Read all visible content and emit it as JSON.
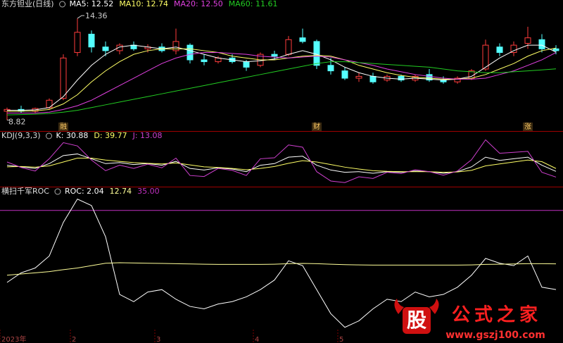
{
  "chart_data": [
    {
      "type": "candlestick",
      "title": "东方钽业(日线)",
      "open": [
        9.3,
        9.4,
        9.3,
        9.5,
        10.0,
        12.5,
        13.5,
        12.8,
        12.6,
        12.9,
        12.7,
        12.8,
        12.6,
        12.9,
        12.1,
        12.0,
        12.2,
        12.0,
        11.8,
        12.4,
        12.4,
        13.3,
        13.1,
        11.8,
        11.5,
        11.1,
        11.2,
        11.0,
        11.2,
        11.0,
        11.3,
        11.0,
        10.9,
        11.1,
        11.6,
        12.8,
        12.5,
        13.0,
        13.2,
        12.7
      ],
      "high": [
        9.5,
        9.6,
        9.5,
        10.0,
        12.4,
        14.36,
        13.7,
        13.1,
        13.0,
        13.1,
        12.95,
        13.0,
        13.8,
        13.0,
        12.4,
        12.3,
        12.4,
        12.1,
        12.5,
        12.6,
        13.4,
        13.8,
        13.2,
        12.2,
        11.7,
        11.4,
        11.4,
        11.3,
        11.3,
        11.3,
        11.6,
        11.2,
        11.2,
        11.6,
        13.2,
        13.0,
        13.1,
        13.9,
        13.5,
        12.9
      ],
      "low": [
        8.82,
        9.2,
        9.2,
        9.4,
        9.9,
        12.3,
        12.5,
        12.3,
        12.4,
        12.6,
        12.5,
        12.5,
        12.4,
        11.9,
        11.8,
        11.9,
        11.9,
        11.5,
        11.7,
        12.1,
        12.3,
        13.0,
        11.6,
        11.3,
        11.0,
        10.9,
        10.8,
        10.9,
        10.9,
        10.9,
        10.9,
        10.8,
        10.8,
        11.0,
        11.5,
        12.3,
        12.3,
        12.7,
        12.5,
        12.4
      ],
      "close": [
        9.4,
        9.3,
        9.45,
        9.9,
        12.2,
        13.6,
        12.8,
        12.6,
        12.9,
        12.7,
        12.8,
        12.6,
        13.1,
        12.1,
        12.0,
        12.2,
        12.0,
        11.7,
        12.4,
        12.3,
        13.2,
        13.1,
        11.8,
        11.5,
        11.1,
        11.2,
        10.9,
        11.2,
        11.0,
        11.2,
        11.0,
        10.9,
        11.1,
        11.5,
        12.9,
        12.5,
        12.9,
        13.3,
        12.7,
        12.6
      ],
      "up_color": "#ff3c3c",
      "down_color": "#54ffff",
      "series": [
        {
          "name": "MA5: 12.52",
          "color": "#ffffff",
          "values": [
            9.35,
            9.35,
            9.38,
            9.5,
            10.1,
            11.0,
            11.8,
            12.4,
            12.8,
            12.9,
            12.8,
            12.7,
            12.8,
            12.6,
            12.4,
            12.2,
            12.1,
            12.0,
            12.05,
            12.15,
            12.4,
            12.6,
            12.4,
            12.1,
            11.7,
            11.4,
            11.2,
            11.1,
            11.05,
            11.1,
            11.05,
            11.0,
            11.05,
            11.2,
            11.7,
            12.2,
            12.6,
            12.9,
            12.9,
            12.52
          ]
        },
        {
          "name": "MA10: 12.74",
          "color": "#ffff66",
          "values": [
            9.3,
            9.3,
            9.32,
            9.4,
            9.7,
            10.2,
            10.9,
            11.5,
            12.0,
            12.4,
            12.6,
            12.7,
            12.7,
            12.7,
            12.6,
            12.5,
            12.3,
            12.2,
            12.1,
            12.1,
            12.2,
            12.3,
            12.35,
            12.3,
            12.1,
            11.8,
            11.6,
            11.4,
            11.25,
            11.15,
            11.1,
            11.05,
            11.05,
            11.1,
            11.3,
            11.6,
            11.9,
            12.3,
            12.6,
            12.74
          ]
        },
        {
          "name": "MA20: 12.50",
          "color": "#e040e0",
          "values": [
            9.2,
            9.2,
            9.2,
            9.25,
            9.4,
            9.6,
            9.9,
            10.3,
            10.7,
            11.1,
            11.5,
            11.9,
            12.2,
            12.4,
            12.5,
            12.5,
            12.45,
            12.4,
            12.3,
            12.25,
            12.2,
            12.25,
            12.3,
            12.25,
            12.1,
            11.95,
            11.8,
            11.6,
            11.45,
            11.3,
            11.2,
            11.1,
            11.05,
            11.05,
            11.1,
            11.3,
            11.5,
            11.8,
            12.1,
            12.5
          ]
        },
        {
          "name": "MA60: 11.61",
          "color": "#22cc22",
          "values": [
            9.1,
            9.12,
            9.14,
            9.18,
            9.25,
            9.35,
            9.5,
            9.65,
            9.8,
            9.95,
            10.1,
            10.25,
            10.4,
            10.55,
            10.7,
            10.85,
            11.0,
            11.15,
            11.3,
            11.45,
            11.6,
            11.75,
            11.9,
            12.0,
            12.0,
            11.95,
            11.9,
            11.85,
            11.8,
            11.75,
            11.7,
            11.6,
            11.5,
            11.45,
            11.4,
            11.4,
            11.45,
            11.5,
            11.55,
            11.61
          ]
        }
      ],
      "events": [
        null,
        null,
        null,
        null,
        "融",
        null,
        null,
        null,
        null,
        null,
        null,
        null,
        null,
        null,
        null,
        null,
        null,
        null,
        null,
        null,
        null,
        null,
        "财",
        null,
        null,
        null,
        null,
        null,
        null,
        null,
        null,
        null,
        null,
        null,
        null,
        null,
        null,
        "涨",
        null,
        null
      ],
      "ylim": [
        8.3,
        14.9
      ]
    },
    {
      "type": "line",
      "title": "KDJ(9,3,3)",
      "series": [
        {
          "name": "K: 30.88",
          "color": "#ffffff",
          "values": [
            50,
            45,
            40,
            55,
            80,
            85,
            70,
            55,
            58,
            52,
            55,
            50,
            62,
            40,
            35,
            42,
            38,
            30,
            50,
            55,
            75,
            78,
            50,
            35,
            28,
            30,
            25,
            30,
            28,
            32,
            30,
            25,
            30,
            45,
            75,
            65,
            70,
            75,
            50,
            30.88
          ]
        },
        {
          "name": "D: 39.77",
          "color": "#ffff66",
          "values": [
            45,
            46,
            44,
            48,
            60,
            72,
            72,
            66,
            62,
            58,
            56,
            54,
            57,
            51,
            45,
            43,
            40,
            36,
            40,
            46,
            56,
            64,
            60,
            52,
            44,
            38,
            33,
            31,
            30,
            30,
            30,
            28,
            29,
            34,
            48,
            54,
            60,
            66,
            61,
            39.77
          ]
        },
        {
          "name": "J: 13.08",
          "color": "#d040d0",
          "values": [
            60,
            43,
            32,
            70,
            120,
            110,
            66,
            33,
            50,
            40,
            53,
            42,
            72,
            18,
            15,
            40,
            34,
            18,
            70,
            73,
            113,
            106,
            30,
            1,
            -4,
            14,
            9,
            28,
            24,
            36,
            30,
            19,
            32,
            67,
            129,
            87,
            90,
            93,
            28,
            13.08
          ]
        }
      ],
      "ylim": [
        -10,
        130
      ]
    },
    {
      "type": "line",
      "title": "横扫千军ROC",
      "categories": [
        "2023年",
        null,
        null,
        null,
        null,
        "2",
        null,
        null,
        null,
        null,
        null,
        "3",
        null,
        null,
        null,
        null,
        null,
        null,
        "4",
        null,
        null,
        null,
        null,
        null,
        "5",
        null,
        null,
        null,
        null,
        null,
        null,
        null,
        null,
        null,
        null,
        null,
        null,
        null,
        null,
        null
      ],
      "series": [
        {
          "name": "ROC: 2.04",
          "color": "#ffffff",
          "values": [
            5,
            9,
            11,
            16,
            30,
            39.7,
            37,
            24,
            0,
            -3,
            1,
            2,
            -2,
            -5,
            -6,
            -4,
            -3,
            -1,
            2,
            6,
            14,
            12,
            2,
            -8,
            -13.7,
            -11,
            -6,
            -2,
            -3,
            1,
            -1,
            0,
            3,
            8,
            15,
            13,
            12,
            16,
            3,
            2.04
          ]
        },
        {
          "name": "12.74",
          "color": "#ffff99",
          "values": [
            8,
            8.5,
            9,
            9.5,
            10.3,
            11,
            12,
            13,
            13.2,
            13.1,
            13,
            12.9,
            12.8,
            12.7,
            12.6,
            12.5,
            12.5,
            12.5,
            12.5,
            12.6,
            12.8,
            12.9,
            12.8,
            12.6,
            12.4,
            12.3,
            12.2,
            12.2,
            12.2,
            12.2,
            12.2,
            12.2,
            12.2,
            12.3,
            12.5,
            12.6,
            12.7,
            12.8,
            12.8,
            12.74
          ]
        }
      ],
      "hlines": [
        {
          "value": 35,
          "label": "35.00",
          "color": "#c030c0"
        }
      ],
      "ylim": [
        -17,
        44
      ]
    }
  ],
  "watermark": {
    "icon": "股",
    "text": "公式之家",
    "url": "www.gszj100.com"
  }
}
